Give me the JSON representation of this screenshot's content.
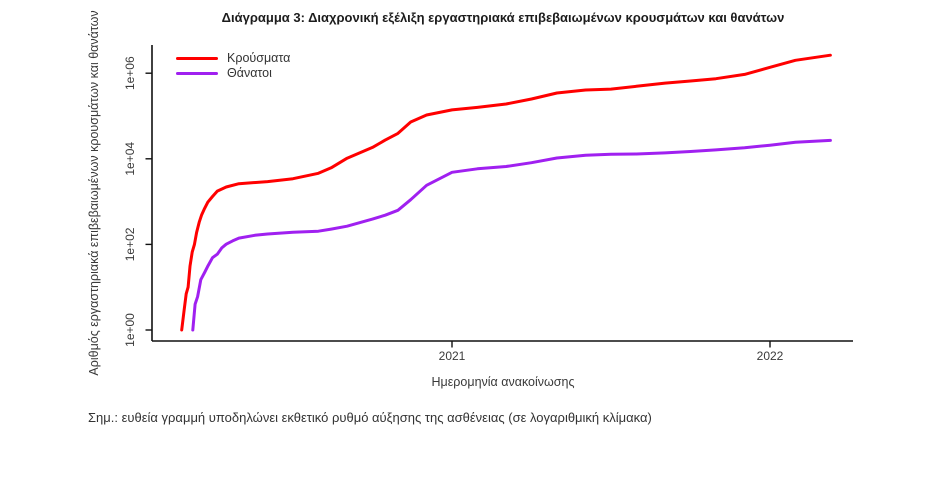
{
  "header": {
    "title": "Διάγραμμα 3: Διαχρονική εξέλιξη εργαστηριακά επιβεβαιωμένων κρουσμάτων και θανάτων"
  },
  "footnote": {
    "text": "Σημ.: ευθεία γραμμή υποδηλώνει εκθετικό ρυθμό αύξησης της ασθένειας (σε λογαριθμική κλίμακα)"
  },
  "colors": {
    "cases_line": "#ff0000",
    "deaths_line": "#a020f0",
    "axis": "#111111",
    "text": "#3a3a3a"
  },
  "chart_data": {
    "type": "line",
    "title": "Διάγραμμα 3: Διαχρονική εξέλιξη εργαστηριακά επιβεβαιωμένων κρουσμάτων και θανάτων",
    "xlabel": "Ημερομηνία ανακοίνωσης",
    "ylabel": "Αριθμός εργαστηριακά επιβεβαιωμένων κρουσμάτων και θανάτων",
    "y_scale": "log10",
    "grid": false,
    "legend_position": "top-left",
    "xlim": [
      2020.06,
      2022.26
    ],
    "ylim": [
      0.55,
      4600000
    ],
    "x_ticks": [
      {
        "value": 2021,
        "label": "2021"
      },
      {
        "value": 2022,
        "label": "2022"
      }
    ],
    "y_ticks": [
      {
        "value": 1,
        "label": "1e+00"
      },
      {
        "value": 100,
        "label": "1e+02"
      },
      {
        "value": 10000,
        "label": "1e+04"
      },
      {
        "value": 1000000,
        "label": "1e+06"
      }
    ],
    "series": [
      {
        "name": "Κρούσματα",
        "color": "#ff0000",
        "points": [
          [
            2020.15,
            1
          ],
          [
            2020.158,
            3
          ],
          [
            2020.164,
            7
          ],
          [
            2020.17,
            10
          ],
          [
            2020.176,
            31
          ],
          [
            2020.183,
            66
          ],
          [
            2020.19,
            99
          ],
          [
            2020.197,
            190
          ],
          [
            2020.205,
            331
          ],
          [
            2020.213,
            495
          ],
          [
            2020.222,
            695
          ],
          [
            2020.232,
            966
          ],
          [
            2020.247,
            1314
          ],
          [
            2020.262,
            1755
          ],
          [
            2020.29,
            2192
          ],
          [
            2020.33,
            2620
          ],
          [
            2020.42,
            2937
          ],
          [
            2020.5,
            3432
          ],
          [
            2020.58,
            4587
          ],
          [
            2020.62,
            6177
          ],
          [
            2020.67,
            10317
          ],
          [
            2020.75,
            18475
          ],
          [
            2020.79,
            27334
          ],
          [
            2020.83,
            39251
          ],
          [
            2020.87,
            72510
          ],
          [
            2020.92,
            105271
          ],
          [
            2021.0,
            138850
          ],
          [
            2021.08,
            158716
          ],
          [
            2021.17,
            190235
          ],
          [
            2021.25,
            249458
          ],
          [
            2021.33,
            344887
          ],
          [
            2021.42,
            404163
          ],
          [
            2021.5,
            425206
          ],
          [
            2021.58,
            494380
          ],
          [
            2021.67,
            586261
          ],
          [
            2021.75,
            655767
          ],
          [
            2021.83,
            745572
          ],
          [
            2021.92,
            938550
          ],
          [
            2022.0,
            1370000
          ],
          [
            2022.08,
            2000000
          ],
          [
            2022.19,
            2630000
          ]
        ]
      },
      {
        "name": "Θάνατοι",
        "color": "#a020f0",
        "points": [
          [
            2020.185,
            1
          ],
          [
            2020.192,
            4
          ],
          [
            2020.2,
            6
          ],
          [
            2020.21,
            15
          ],
          [
            2020.222,
            22
          ],
          [
            2020.233,
            32
          ],
          [
            2020.247,
            49
          ],
          [
            2020.262,
            59
          ],
          [
            2020.276,
            83
          ],
          [
            2020.29,
            101
          ],
          [
            2020.31,
            121
          ],
          [
            2020.33,
            140
          ],
          [
            2020.38,
            163
          ],
          [
            2020.42,
            175
          ],
          [
            2020.5,
            192
          ],
          [
            2020.58,
            203
          ],
          [
            2020.62,
            228
          ],
          [
            2020.67,
            266
          ],
          [
            2020.75,
            391
          ],
          [
            2020.79,
            482
          ],
          [
            2020.83,
            626
          ],
          [
            2020.87,
            1106
          ],
          [
            2020.92,
            2406
          ],
          [
            2021.0,
            4838
          ],
          [
            2021.08,
            5851
          ],
          [
            2021.17,
            6597
          ],
          [
            2021.25,
            8093
          ],
          [
            2021.33,
            10453
          ],
          [
            2021.42,
            12122
          ],
          [
            2021.5,
            12737
          ],
          [
            2021.58,
            12932
          ],
          [
            2021.67,
            13702
          ],
          [
            2021.75,
            14828
          ],
          [
            2021.83,
            16151
          ],
          [
            2021.92,
            18067
          ],
          [
            2022.0,
            20790
          ],
          [
            2022.08,
            24230
          ],
          [
            2022.19,
            26910
          ]
        ]
      }
    ]
  }
}
